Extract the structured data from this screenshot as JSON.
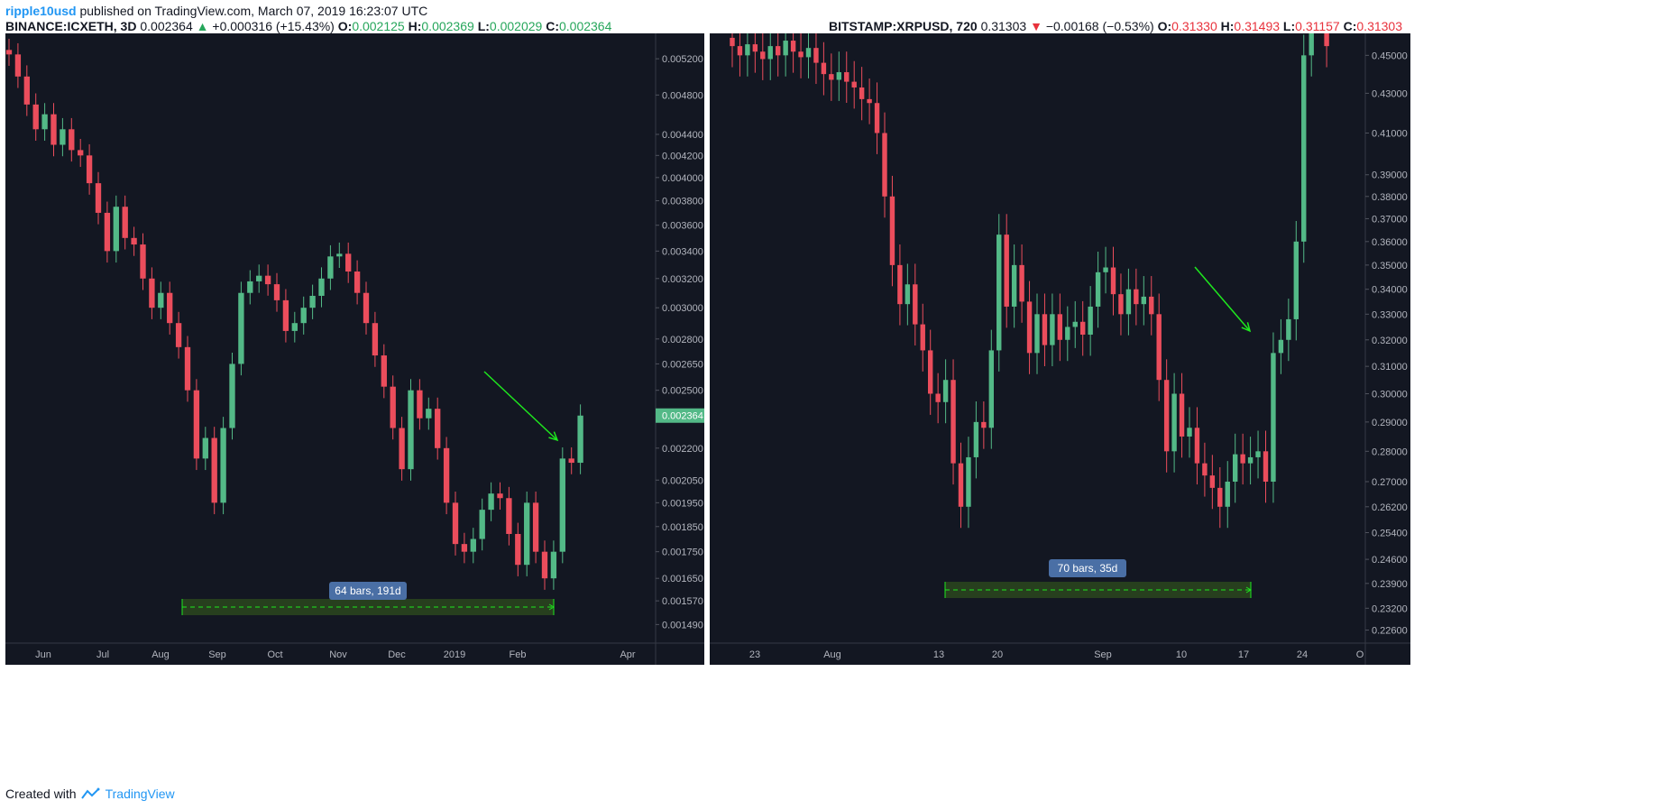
{
  "publish_line": {
    "author": "ripple10usd",
    "text": "published on TradingView.com, March 07, 2019 16:23:07 UTC"
  },
  "left_header": {
    "symbol": "BINANCE:ICXETH, 3D",
    "price": "0.002364",
    "change": "+0.000316 (+15.43%)",
    "o_label": "O:",
    "o": "0.002125",
    "h_label": "H:",
    "h": "0.002369",
    "l_label": "L:",
    "l": "0.002029",
    "c_label": "C:",
    "c": "0.002364"
  },
  "right_header": {
    "symbol": "BITSTAMP:XRPUSD, 720",
    "price": "0.31303",
    "change": "−0.00168 (−0.53%)",
    "o_label": "O:",
    "o": "0.31330",
    "h_label": "H:",
    "h": "0.31493",
    "l_label": "L:",
    "l": "0.31157",
    "c_label": "C:",
    "c": "0.31303"
  },
  "footer": {
    "created_with": "Created with",
    "brand": "TradingView"
  },
  "colors": {
    "up": "#53b987",
    "down": "#eb4d5c",
    "background": "#131722",
    "arrow": "#1ee81e",
    "price_tag": "#53b987",
    "range_label": "#4a6fa5"
  },
  "chart_data": [
    {
      "type": "candlestick",
      "title": "BINANCE:ICXETH, 3D",
      "scale": "log",
      "ylim": [
        0.00143,
        0.0055
      ],
      "y_ticks": [
        "0.005200",
        "0.004800",
        "0.004400",
        "0.004200",
        "0.004000",
        "0.003800",
        "0.003600",
        "0.003400",
        "0.003200",
        "0.003000",
        "0.002800",
        "0.002650",
        "0.002500",
        "0.002200",
        "0.002050",
        "0.001950",
        "0.001850",
        "0.001750",
        "0.001650",
        "0.001570",
        "0.001490"
      ],
      "x_ticks": [
        "Jun",
        "Jul",
        "Aug",
        "Sep",
        "Oct",
        "Nov",
        "Dec",
        "2019",
        "Feb",
        "Apr"
      ],
      "last_price_label": "0.002364",
      "range_label": "64 bars, 191d",
      "closes": [
        0.00525,
        0.005,
        0.0047,
        0.00445,
        0.0046,
        0.0043,
        0.00445,
        0.00425,
        0.0042,
        0.00395,
        0.0037,
        0.0034,
        0.00375,
        0.0035,
        0.00345,
        0.0032,
        0.003,
        0.0031,
        0.0029,
        0.00275,
        0.0025,
        0.00215,
        0.00225,
        0.00195,
        0.0023,
        0.00265,
        0.0031,
        0.00318,
        0.00322,
        0.00316,
        0.00305,
        0.00285,
        0.0029,
        0.003,
        0.00308,
        0.0032,
        0.00336,
        0.00338,
        0.00325,
        0.0031,
        0.0029,
        0.0027,
        0.00252,
        0.0023,
        0.0021,
        0.0025,
        0.00235,
        0.0024,
        0.0022,
        0.00195,
        0.00178,
        0.00175,
        0.0018,
        0.00192,
        0.00199,
        0.00197,
        0.00182,
        0.0017,
        0.00195,
        0.00175,
        0.00165,
        0.00175,
        0.00215,
        0.00213,
        0.002364
      ]
    },
    {
      "type": "candlestick",
      "title": "BITSTAMP:XRPUSD, 720",
      "scale": "log",
      "ylim": [
        0.2225,
        0.462
      ],
      "y_ticks": [
        "0.45000",
        "0.43000",
        "0.41000",
        "0.39000",
        "0.38000",
        "0.37000",
        "0.36000",
        "0.35000",
        "0.34000",
        "0.33000",
        "0.32000",
        "0.31000",
        "0.30000",
        "0.29000",
        "0.28000",
        "0.27000",
        "0.26200",
        "0.25400",
        "0.24600",
        "0.23900",
        "0.23200",
        "0.22600"
      ],
      "x_ticks": [
        "23",
        "Aug",
        "13",
        "20",
        "Sep",
        "10",
        "17",
        "24",
        "O"
      ],
      "range_label": "70 bars, 35d",
      "closes": [
        0.455,
        0.45,
        0.456,
        0.452,
        0.448,
        0.455,
        0.45,
        0.458,
        0.452,
        0.449,
        0.454,
        0.446,
        0.44,
        0.437,
        0.441,
        0.436,
        0.433,
        0.427,
        0.425,
        0.41,
        0.38,
        0.35,
        0.334,
        0.342,
        0.326,
        0.316,
        0.3,
        0.297,
        0.305,
        0.276,
        0.262,
        0.278,
        0.29,
        0.288,
        0.316,
        0.363,
        0.333,
        0.35,
        0.335,
        0.315,
        0.33,
        0.318,
        0.33,
        0.32,
        0.325,
        0.327,
        0.322,
        0.333,
        0.347,
        0.349,
        0.338,
        0.33,
        0.34,
        0.334,
        0.337,
        0.33,
        0.305,
        0.28,
        0.3,
        0.285,
        0.288,
        0.276,
        0.272,
        0.268,
        0.262,
        0.27,
        0.279,
        0.276,
        0.278,
        0.28,
        0.27,
        0.315,
        0.32,
        0.328,
        0.36,
        0.45,
        0.48,
        0.5,
        0.455
      ]
    }
  ]
}
